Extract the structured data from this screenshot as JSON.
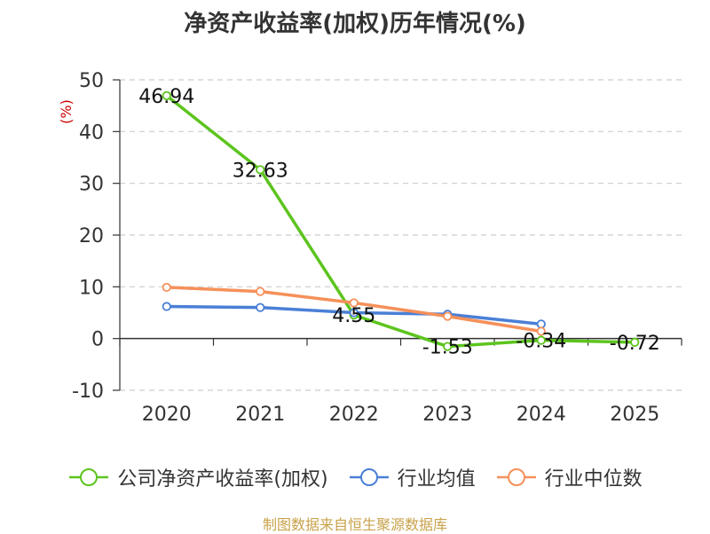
{
  "chart_data": {
    "type": "line",
    "title": "净资产收益率(加权)历年情况(%)",
    "ylabel": "(%)",
    "categories": [
      "2020",
      "2021",
      "2022",
      "2023",
      "2024",
      "2025"
    ],
    "ylim": [
      -10,
      50
    ],
    "yticks": [
      -10,
      0,
      10,
      20,
      30,
      40,
      50
    ],
    "grid": true,
    "legend_position": "bottom",
    "series": [
      {
        "name": "公司净资产收益率(加权)",
        "color": "#5cc41e",
        "values": [
          46.94,
          32.63,
          4.55,
          -1.53,
          -0.34,
          -0.72
        ],
        "labels": [
          "46.94",
          "32.63",
          "4.55",
          "-1.53",
          "-0.34",
          "-0.72"
        ]
      },
      {
        "name": "行业均值",
        "color": "#4a7fd6",
        "values": [
          6.2,
          6.0,
          5.0,
          4.7,
          2.8,
          null
        ]
      },
      {
        "name": "行业中位数",
        "color": "#f5905a",
        "values": [
          9.9,
          9.1,
          6.9,
          4.3,
          1.4,
          null
        ]
      }
    ]
  },
  "footer": {
    "source": "制图数据来自恒生聚源数据库"
  }
}
